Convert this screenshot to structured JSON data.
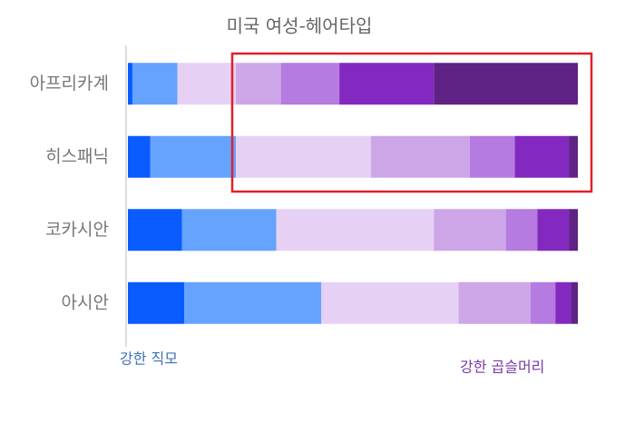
{
  "chart_data": {
    "type": "stacked-bar-horizontal",
    "title": "미국 여성-헤어타입",
    "categories": [
      "아프리카계",
      "히스패닉",
      "코카시안",
      "아시안"
    ],
    "series": [
      {
        "color": "#0a5cff",
        "values": [
          1,
          5,
          12,
          12.5
        ]
      },
      {
        "color": "#66a3ff",
        "values": [
          10,
          19,
          21,
          30.5
        ]
      },
      {
        "color": "#e6d1f5",
        "values": [
          13,
          30,
          35,
          30.5
        ]
      },
      {
        "color": "#cda6e8",
        "values": [
          10,
          22,
          16,
          16
        ]
      },
      {
        "color": "#b57be0",
        "values": [
          13,
          10,
          7,
          5.5
        ]
      },
      {
        "color": "#8329bf",
        "values": [
          21,
          12,
          7,
          3.5
        ]
      },
      {
        "color": "#5e2385",
        "values": [
          32,
          2,
          2,
          1.5
        ]
      }
    ],
    "xlim": [
      0,
      100
    ],
    "annotations": [
      "강한 직모",
      "강한 곱슬머리"
    ]
  }
}
